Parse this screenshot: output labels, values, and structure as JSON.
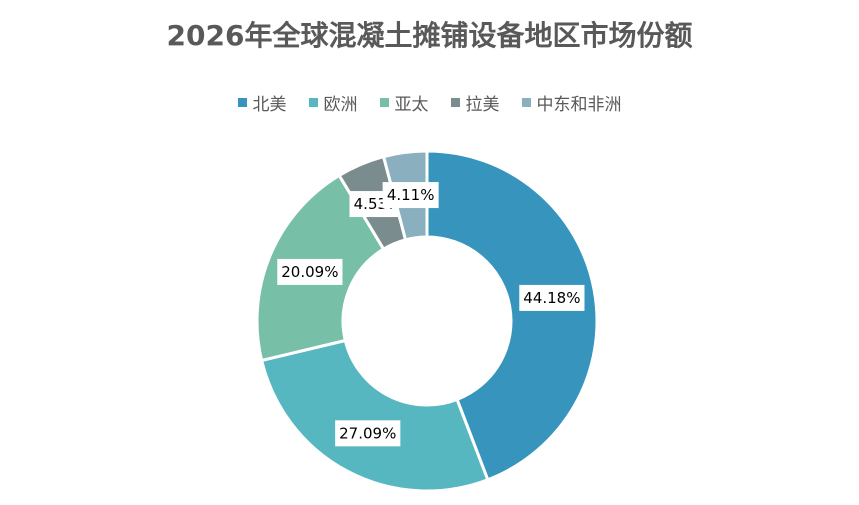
{
  "chart_data": {
    "type": "pie",
    "variant": "donut",
    "title": "2026年全球混凝土摊铺设备地区市场份额",
    "legend_position": "top",
    "categories": [
      "北美",
      "欧洲",
      "亚太",
      "拉美",
      "中东和非洲"
    ],
    "values": [
      44.18,
      27.09,
      20.09,
      4.53,
      4.11
    ],
    "data_labels": [
      "44.18%",
      "27.09%",
      "20.09%",
      "4.53%",
      "4.11%"
    ],
    "colors": [
      "#3795BD",
      "#57B7C1",
      "#77BFA7",
      "#7A8C8E",
      "#8AAFBE"
    ]
  }
}
